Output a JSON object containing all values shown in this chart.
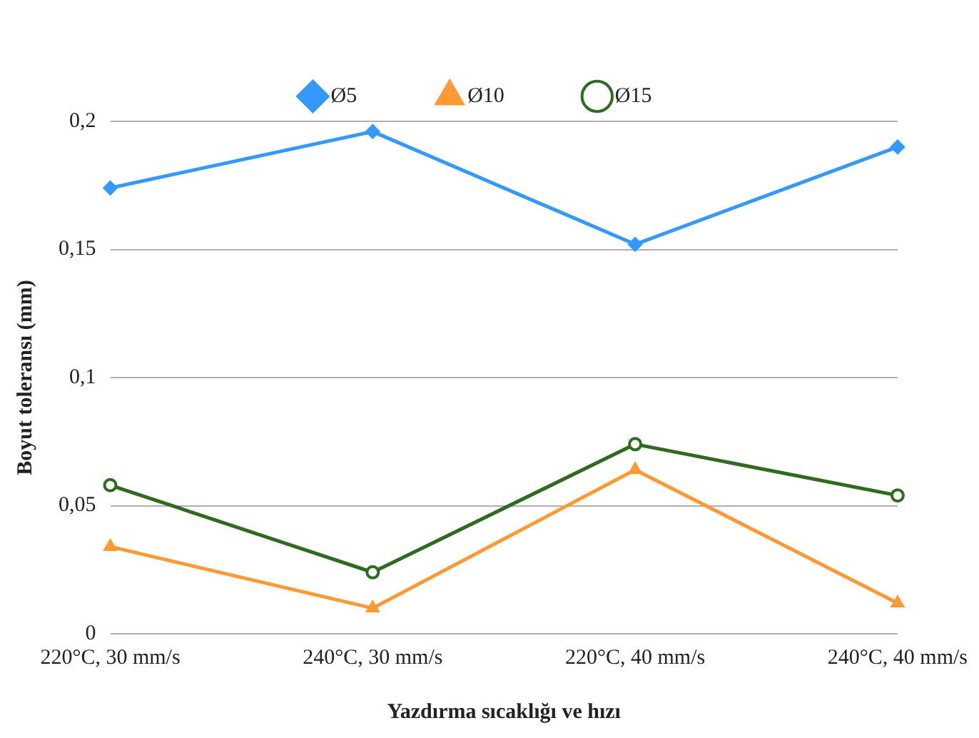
{
  "chart_data": {
    "type": "line",
    "xlabel": "Yazdırma sıcaklığı ve hızı",
    "ylabel": "Boyut toleransı (mm)",
    "categories": [
      "220°C, 30 mm/s",
      "240°C, 30 mm/s",
      "220°C, 40 mm/s",
      "240°C, 40 mm/s"
    ],
    "series": [
      {
        "name": "Ø5",
        "color": "#3399ff",
        "marker": "diamond",
        "values": [
          0.174,
          0.196,
          0.152,
          0.19
        ]
      },
      {
        "name": "Ø10",
        "color": "#ff9933",
        "marker": "triangle",
        "values": [
          0.034,
          0.01,
          0.064,
          0.012
        ]
      },
      {
        "name": "Ø15",
        "color": "#2e6b1f",
        "marker": "circle",
        "values": [
          0.058,
          0.024,
          0.074,
          0.054
        ]
      }
    ],
    "ylim": [
      0,
      0.2
    ],
    "yticks": [
      0,
      {
        "value": 0.05,
        "label": "0,05"
      },
      {
        "value": 0.1,
        "label": "0,1"
      },
      {
        "value": 0.15,
        "label": "0,15"
      },
      {
        "value": 0.2,
        "label": "0,2"
      }
    ],
    "grid": "y",
    "legend": "top"
  }
}
